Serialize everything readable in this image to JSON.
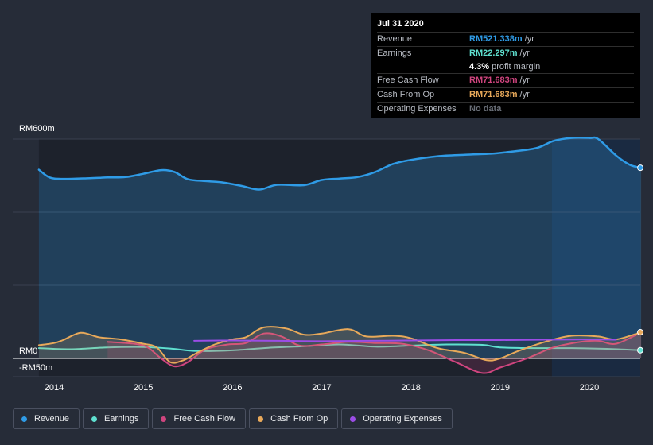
{
  "tooltip": {
    "date": "Jul 31 2020",
    "rows": [
      {
        "name": "Revenue",
        "value": "RM521.338m",
        "unit": "/yr",
        "color": "#2f9be6"
      },
      {
        "name": "Earnings",
        "value": "RM22.297m",
        "unit": "/yr",
        "color": "#5fe0d0"
      },
      {
        "name": "",
        "value": "4.3%",
        "unit": "profit margin",
        "color": "#ffffff"
      },
      {
        "name": "Free Cash Flow",
        "value": "RM71.683m",
        "unit": "/yr",
        "color": "#d0457f"
      },
      {
        "name": "Cash From Op",
        "value": "RM71.683m",
        "unit": "/yr",
        "color": "#e8a95a"
      },
      {
        "name": "Operating Expenses",
        "value": "No data",
        "unit": "",
        "color": "#6b7079"
      }
    ]
  },
  "legend": [
    {
      "label": "Revenue",
      "color": "#2f9be6"
    },
    {
      "label": "Earnings",
      "color": "#5fe0d0"
    },
    {
      "label": "Free Cash Flow",
      "color": "#d0457f"
    },
    {
      "label": "Cash From Op",
      "color": "#e8a95a"
    },
    {
      "label": "Operating Expenses",
      "color": "#9b4de6"
    }
  ],
  "chart_data": {
    "type": "area",
    "y_ticks": [
      {
        "value": 600,
        "label": "RM600m"
      },
      {
        "value": 0,
        "label": "RM0"
      },
      {
        "value": -50,
        "label": "-RM50m"
      }
    ],
    "ylim": [
      -50,
      600
    ],
    "x_ticks": [
      {
        "value": 2014,
        "label": "2014"
      },
      {
        "value": 2015,
        "label": "2015"
      },
      {
        "value": 2016,
        "label": "2016"
      },
      {
        "value": 2017,
        "label": "2017"
      },
      {
        "value": 2018,
        "label": "2018"
      },
      {
        "value": 2019,
        "label": "2019"
      },
      {
        "value": 2020,
        "label": "2020"
      }
    ],
    "xlim": [
      2013.7,
      2020.58
    ],
    "highlight_from": 2019.58,
    "grid": true,
    "legend_position": "bottom",
    "series": [
      {
        "name": "Revenue",
        "color": "#2f9be6",
        "fill": true,
        "points": [
          [
            2013.83,
            516
          ],
          [
            2013.95,
            495
          ],
          [
            2014.1,
            491
          ],
          [
            2014.4,
            493
          ],
          [
            2014.6,
            495
          ],
          [
            2014.8,
            496
          ],
          [
            2015.0,
            505
          ],
          [
            2015.2,
            515
          ],
          [
            2015.35,
            510
          ],
          [
            2015.5,
            490
          ],
          [
            2015.7,
            485
          ],
          [
            2015.9,
            481
          ],
          [
            2016.1,
            472
          ],
          [
            2016.3,
            462
          ],
          [
            2016.5,
            475
          ],
          [
            2016.8,
            474
          ],
          [
            2017.0,
            488
          ],
          [
            2017.2,
            492
          ],
          [
            2017.4,
            496
          ],
          [
            2017.6,
            510
          ],
          [
            2017.8,
            532
          ],
          [
            2018.0,
            543
          ],
          [
            2018.3,
            553
          ],
          [
            2018.6,
            557
          ],
          [
            2018.9,
            560
          ],
          [
            2019.1,
            565
          ],
          [
            2019.4,
            575
          ],
          [
            2019.6,
            595
          ],
          [
            2019.8,
            603
          ],
          [
            2020.0,
            603
          ],
          [
            2020.1,
            600
          ],
          [
            2020.3,
            555
          ],
          [
            2020.45,
            530
          ],
          [
            2020.58,
            521
          ]
        ]
      },
      {
        "name": "Earnings",
        "color": "#5fe0d0",
        "fill": false,
        "points": [
          [
            2013.83,
            28
          ],
          [
            2014.2,
            25
          ],
          [
            2014.6,
            30
          ],
          [
            2015.0,
            31
          ],
          [
            2015.3,
            27
          ],
          [
            2015.6,
            20
          ],
          [
            2016.0,
            22
          ],
          [
            2016.4,
            29
          ],
          [
            2016.8,
            33
          ],
          [
            2017.2,
            38
          ],
          [
            2017.6,
            32
          ],
          [
            2018.0,
            35
          ],
          [
            2018.4,
            38
          ],
          [
            2018.8,
            37
          ],
          [
            2019.0,
            30
          ],
          [
            2019.4,
            28
          ],
          [
            2019.8,
            28
          ],
          [
            2020.2,
            26
          ],
          [
            2020.58,
            22
          ]
        ]
      },
      {
        "name": "Free Cash Flow",
        "color": "#d0457f",
        "fill": true,
        "points": [
          [
            2014.6,
            45
          ],
          [
            2014.9,
            40
          ],
          [
            2015.05,
            30
          ],
          [
            2015.2,
            0
          ],
          [
            2015.35,
            -22
          ],
          [
            2015.5,
            -10
          ],
          [
            2015.7,
            25
          ],
          [
            2015.95,
            38
          ],
          [
            2016.15,
            42
          ],
          [
            2016.35,
            68
          ],
          [
            2016.55,
            60
          ],
          [
            2016.75,
            35
          ],
          [
            2017.0,
            38
          ],
          [
            2017.3,
            45
          ],
          [
            2017.6,
            42
          ],
          [
            2017.9,
            40
          ],
          [
            2018.2,
            22
          ],
          [
            2018.5,
            -10
          ],
          [
            2018.8,
            -40
          ],
          [
            2019.0,
            -25
          ],
          [
            2019.3,
            0
          ],
          [
            2019.6,
            30
          ],
          [
            2019.9,
            45
          ],
          [
            2020.1,
            48
          ],
          [
            2020.3,
            40
          ],
          [
            2020.58,
            71.683
          ]
        ]
      },
      {
        "name": "Cash From Op",
        "color": "#e8a95a",
        "fill": true,
        "points": [
          [
            2013.83,
            36
          ],
          [
            2014.0,
            42
          ],
          [
            2014.1,
            50
          ],
          [
            2014.3,
            70
          ],
          [
            2014.5,
            58
          ],
          [
            2014.75,
            52
          ],
          [
            2015.0,
            40
          ],
          [
            2015.15,
            30
          ],
          [
            2015.3,
            -10
          ],
          [
            2015.45,
            -5
          ],
          [
            2015.6,
            15
          ],
          [
            2015.8,
            38
          ],
          [
            2016.0,
            52
          ],
          [
            2016.15,
            58
          ],
          [
            2016.35,
            85
          ],
          [
            2016.6,
            82
          ],
          [
            2016.8,
            65
          ],
          [
            2017.0,
            68
          ],
          [
            2017.3,
            80
          ],
          [
            2017.5,
            60
          ],
          [
            2017.8,
            62
          ],
          [
            2018.0,
            55
          ],
          [
            2018.3,
            28
          ],
          [
            2018.6,
            15
          ],
          [
            2018.85,
            -5
          ],
          [
            2019.0,
            0
          ],
          [
            2019.2,
            20
          ],
          [
            2019.5,
            45
          ],
          [
            2019.8,
            62
          ],
          [
            2020.1,
            60
          ],
          [
            2020.3,
            52
          ],
          [
            2020.58,
            71.683
          ]
        ]
      },
      {
        "name": "Operating Expenses",
        "color": "#9b4de6",
        "fill": false,
        "points": [
          [
            2015.57,
            48
          ],
          [
            2016.0,
            49
          ],
          [
            2016.5,
            48
          ],
          [
            2017.0,
            47
          ],
          [
            2017.5,
            48
          ],
          [
            2018.0,
            49
          ],
          [
            2018.5,
            50
          ],
          [
            2019.0,
            50
          ],
          [
            2019.5,
            51
          ],
          [
            2020.0,
            52
          ],
          [
            2020.3,
            51
          ]
        ]
      }
    ],
    "end_markers": [
      {
        "series": "Revenue",
        "x": 2020.58,
        "y": 521.338
      },
      {
        "series": "Earnings",
        "x": 2020.58,
        "y": 22.297
      },
      {
        "series": "Cash From Op",
        "x": 2020.58,
        "y": 71.683
      }
    ]
  }
}
